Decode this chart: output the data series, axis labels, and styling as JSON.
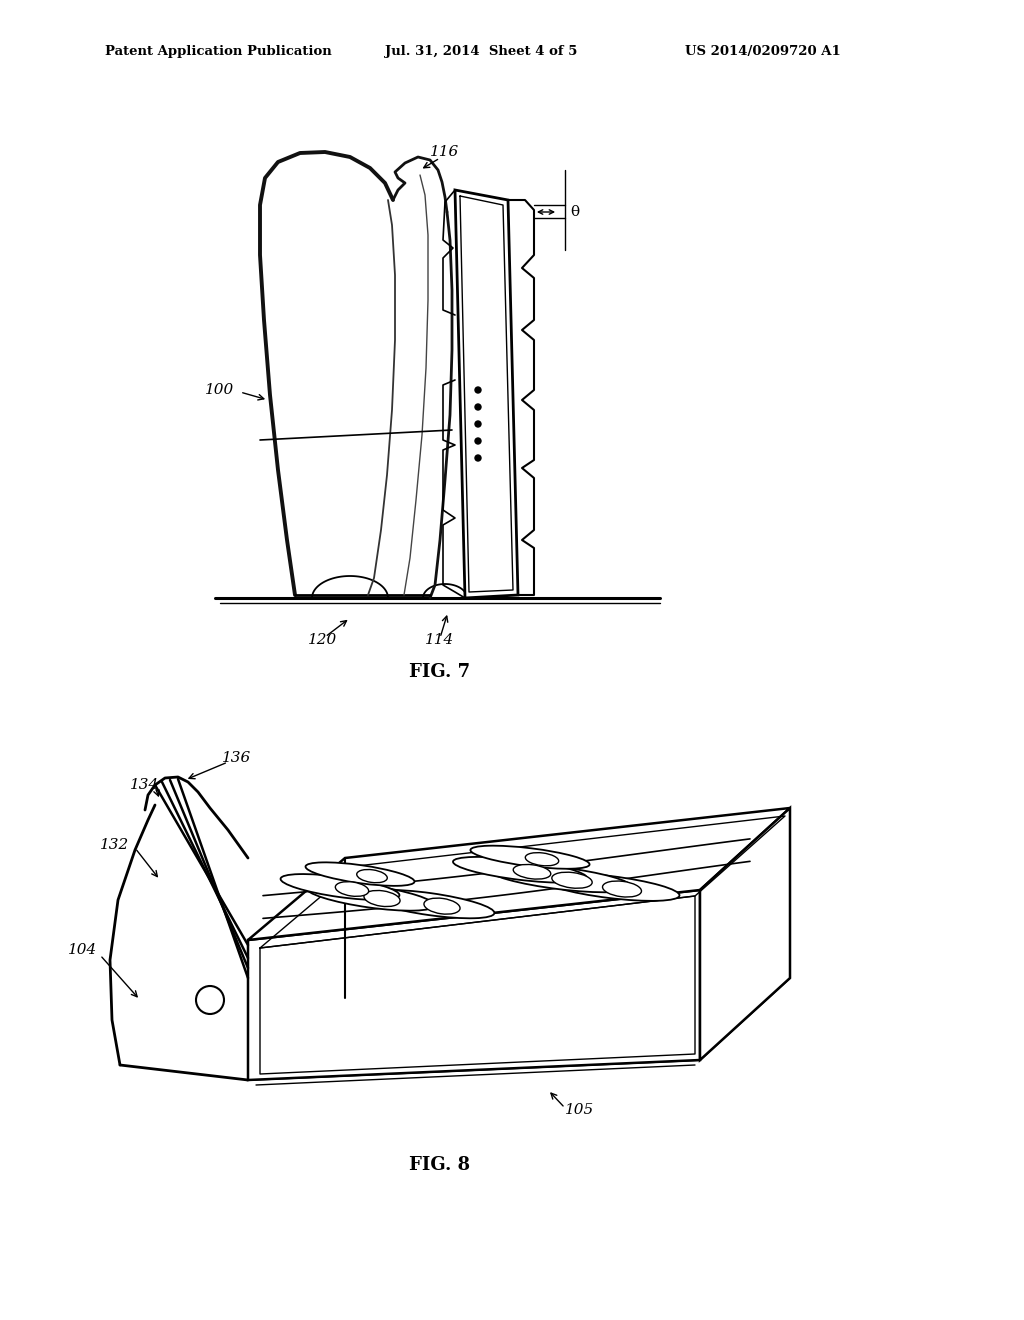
{
  "bg_color": "#ffffff",
  "line_color": "#000000",
  "header_left": "Patent Application Publication",
  "header_mid": "Jul. 31, 2014  Sheet 4 of 5",
  "header_right": "US 2014/0209720 A1",
  "fig7_caption": "FIG. 7",
  "fig8_caption": "FIG. 8",
  "theta_label": "θ"
}
